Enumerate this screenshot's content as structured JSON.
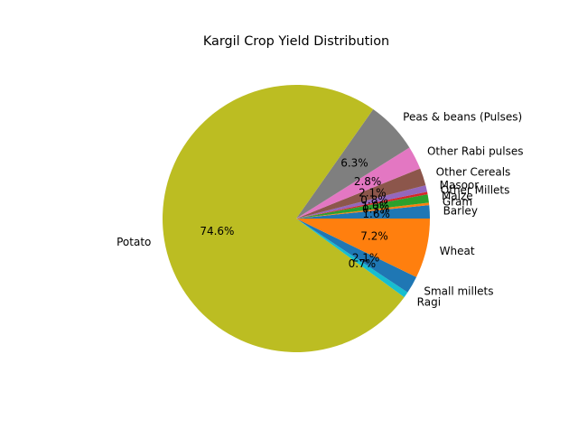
{
  "chart_data": {
    "type": "pie",
    "title": "Kargil Crop Yield Distribution",
    "start_angle_deg": 0,
    "direction": "counterclockwise",
    "slices": [
      {
        "label": "Barley",
        "value": 1.6,
        "pct_label": "1.6%",
        "color": "#1f77b4"
      },
      {
        "label": "Gram",
        "value": 0.3,
        "pct_label": "0.3%",
        "color": "#ff7f0e"
      },
      {
        "label": "Maize",
        "value": 1.0,
        "pct_label": "1.0%",
        "color": "#2ca02c"
      },
      {
        "label": "Other Millets",
        "value": 0.3,
        "pct_label": "",
        "color": "#d62728"
      },
      {
        "label": "Masoor",
        "value": 0.8,
        "pct_label": "0.8%",
        "color": "#9467bd"
      },
      {
        "label": "Other Cereals",
        "value": 2.1,
        "pct_label": "2.1%",
        "color": "#8c564b"
      },
      {
        "label": "Other Rabi pulses",
        "value": 2.8,
        "pct_label": "2.8%",
        "color": "#e377c2"
      },
      {
        "label": "Peas & beans (Pulses)",
        "value": 6.3,
        "pct_label": "6.3%",
        "color": "#7f7f7f"
      },
      {
        "label": "Potato",
        "value": 74.6,
        "pct_label": "74.6%",
        "color": "#bcbd22"
      },
      {
        "label": "Ragi",
        "value": 0.7,
        "pct_label": "0.7%",
        "color": "#17becf"
      },
      {
        "label": "Small millets",
        "value": 2.1,
        "pct_label": "2.1%",
        "color": "#1f77b4"
      },
      {
        "label": "Wheat",
        "value": 7.2,
        "pct_label": "7.2%",
        "color": "#ff7f0e"
      }
    ],
    "legend": "none"
  }
}
